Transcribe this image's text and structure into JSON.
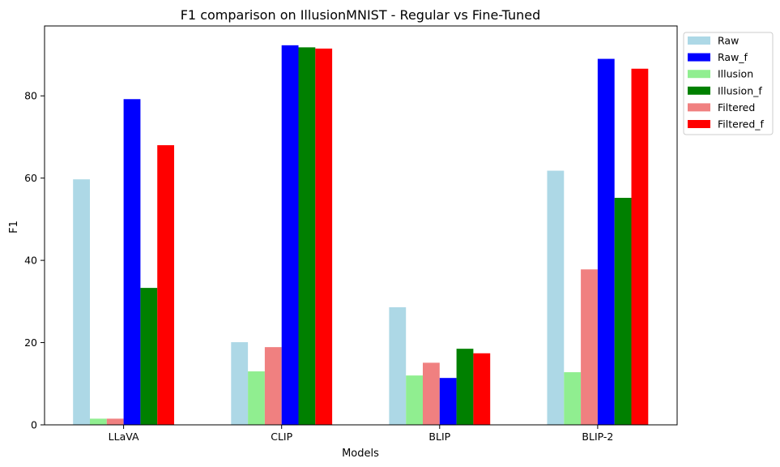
{
  "chart_data": {
    "type": "bar",
    "title": "F1 comparison on IllusionMNIST - Regular vs Fine-Tuned",
    "xlabel": "Models",
    "ylabel": "F1",
    "categories": [
      "LLaVA",
      "CLIP",
      "BLIP",
      "BLIP-2"
    ],
    "ylim": [
      0,
      97
    ],
    "yticks": [
      0,
      20,
      40,
      60,
      80
    ],
    "legend_position": "outside-top-right",
    "grid": false,
    "series": [
      {
        "name": "Raw",
        "color": "#add8e6",
        "values": [
          59.7,
          20.1,
          28.6,
          61.8
        ]
      },
      {
        "name": "Raw_f",
        "color": "#0000ff",
        "values": [
          79.2,
          92.3,
          11.4,
          89.0
        ]
      },
      {
        "name": "Illusion",
        "color": "#90ee90",
        "values": [
          1.5,
          13.0,
          12.0,
          12.8
        ]
      },
      {
        "name": "Illusion_f",
        "color": "#008000",
        "values": [
          33.3,
          91.8,
          18.5,
          55.2
        ]
      },
      {
        "name": "Filtered",
        "color": "#f08080",
        "values": [
          1.5,
          18.9,
          15.1,
          37.8
        ]
      },
      {
        "name": "Filtered_f",
        "color": "#ff0000",
        "values": [
          68.0,
          91.5,
          17.4,
          86.6
        ]
      }
    ],
    "bar_order": [
      "Raw",
      "Illusion",
      "Filtered",
      "Raw_f",
      "Illusion_f",
      "Filtered_f"
    ]
  }
}
